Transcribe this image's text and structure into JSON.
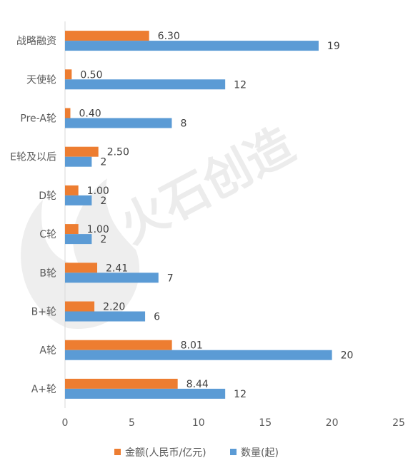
{
  "chart_data": {
    "type": "bar",
    "orientation": "horizontal",
    "categories": [
      "战略融资",
      "天使轮",
      "Pre-A轮",
      "E轮及以后",
      "D轮",
      "C轮",
      "B轮",
      "B+轮",
      "A轮",
      "A+轮"
    ],
    "series": [
      {
        "name": "金额(人民币/亿元)",
        "color": "#ED7D31",
        "values": [
          6.3,
          0.5,
          0.4,
          2.5,
          1.0,
          1.0,
          2.41,
          2.2,
          8.01,
          8.44
        ],
        "labels": [
          "6.30",
          "0.50",
          "0.40",
          "2.50",
          "1.00",
          "1.00",
          "2.41",
          "2.20",
          "8.01",
          "8.44"
        ]
      },
      {
        "name": "数量(起)",
        "color": "#5B9BD5",
        "values": [
          19,
          12,
          8,
          2,
          2,
          2,
          7,
          6,
          20,
          12
        ],
        "labels": [
          "19",
          "12",
          "8",
          "2",
          "2",
          "2",
          "7",
          "6",
          "20",
          "12"
        ]
      }
    ],
    "xlim": [
      0,
      25
    ],
    "xticks": [
      "0",
      "5",
      "10",
      "15",
      "20",
      "25"
    ],
    "grid": false,
    "legend": "bottom",
    "title": "",
    "xlabel": "",
    "ylabel": ""
  },
  "watermark": {
    "text": "火石创造",
    "color": "#eeeeee"
  }
}
